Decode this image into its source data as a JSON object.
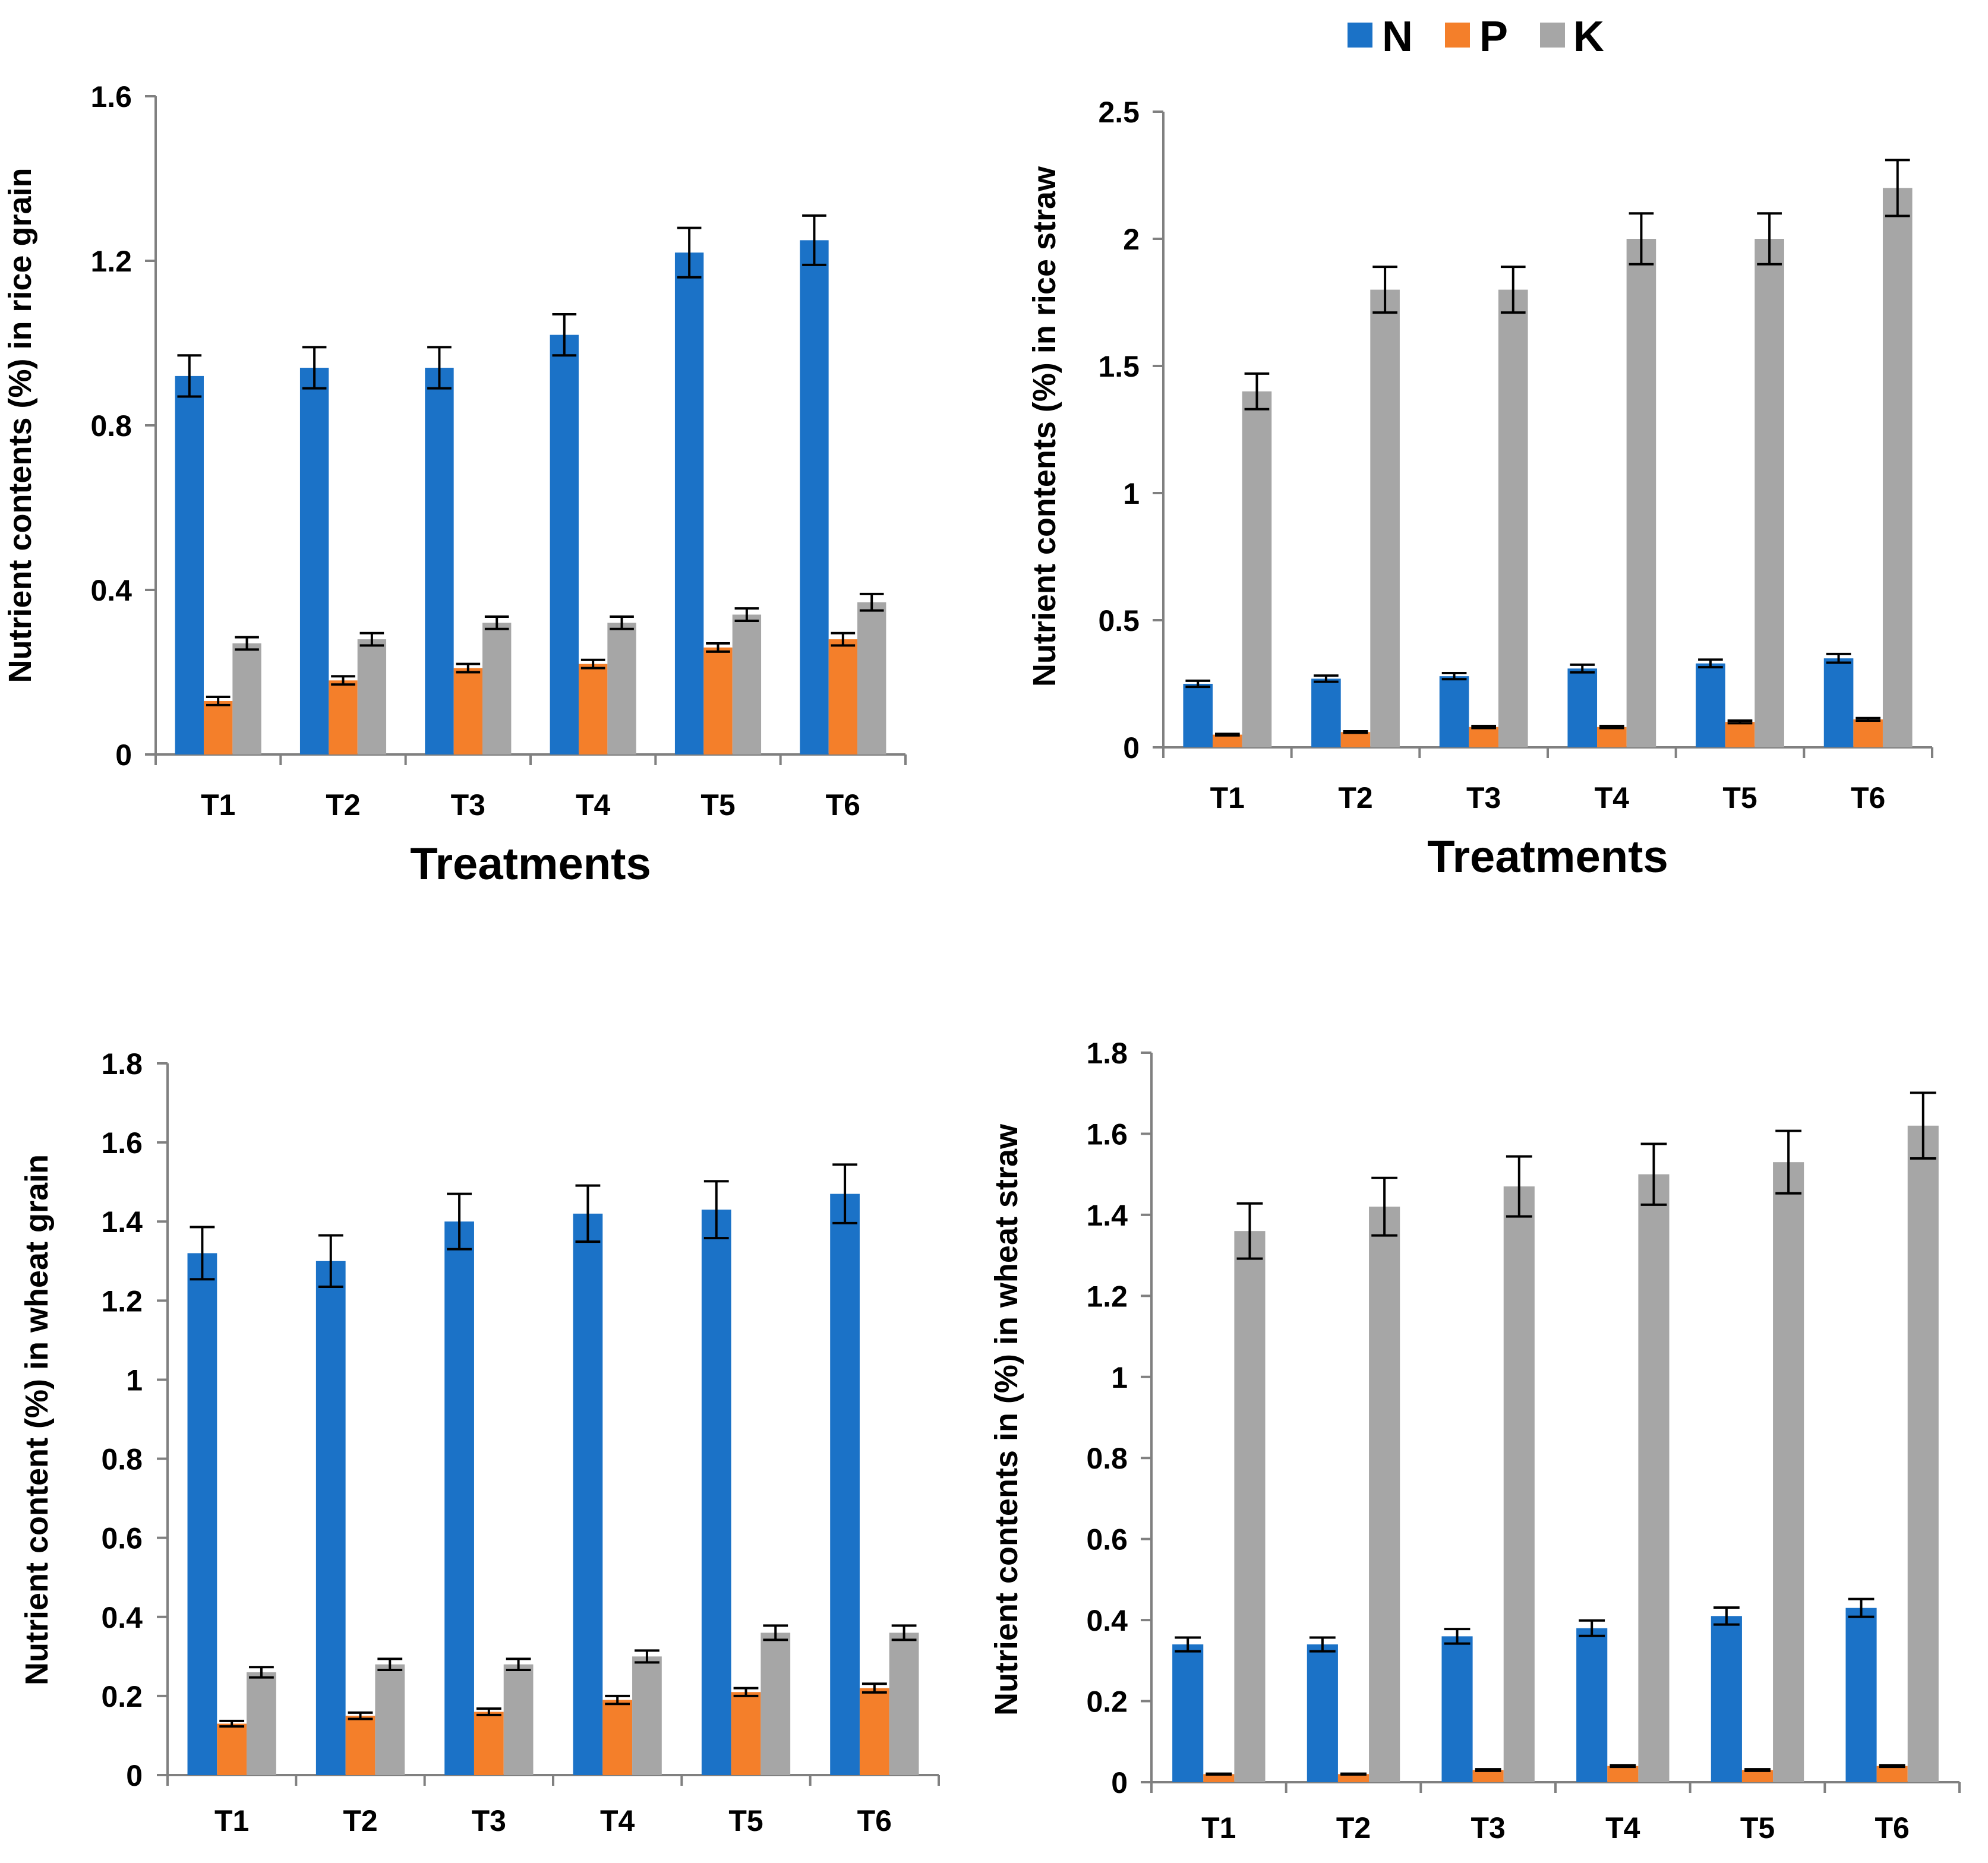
{
  "legend": [
    {
      "label": "N",
      "color": "#1b72c7"
    },
    {
      "label": "P",
      "color": "#f47f2a"
    },
    {
      "label": "K",
      "color": "#a6a6a6"
    }
  ],
  "chart_data": [
    {
      "type": "bar",
      "title": "",
      "xlabel": "Treatments",
      "ylabel": "Nutrient contents (%) in rice grain",
      "categories": [
        "T1",
        "T2",
        "T3",
        "T4",
        "T5",
        "T6"
      ],
      "ylim": [
        0,
        1.6
      ],
      "yticks": [
        "0",
        "0.4",
        "0.8",
        "1.2",
        "1.6"
      ],
      "ytick_values": [
        0,
        0.4,
        0.8,
        1.2,
        1.6
      ],
      "series": [
        {
          "name": "N",
          "values": [
            0.92,
            0.94,
            0.94,
            1.02,
            1.22,
            1.25
          ],
          "errors": [
            0.05,
            0.05,
            0.05,
            0.05,
            0.06,
            0.06
          ]
        },
        {
          "name": "P",
          "values": [
            0.13,
            0.18,
            0.21,
            0.22,
            0.26,
            0.28
          ],
          "errors": [
            0.01,
            0.01,
            0.01,
            0.01,
            0.01,
            0.015
          ]
        },
        {
          "name": "K",
          "values": [
            0.27,
            0.28,
            0.32,
            0.32,
            0.34,
            0.37
          ],
          "errors": [
            0.015,
            0.015,
            0.015,
            0.015,
            0.015,
            0.02
          ]
        }
      ]
    },
    {
      "type": "bar",
      "title": "",
      "xlabel": "Treatments",
      "ylabel": "Nutrient contents (%) in rice straw",
      "categories": [
        "T1",
        "T2",
        "T3",
        "T4",
        "T5",
        "T6"
      ],
      "ylim": [
        0,
        2.5
      ],
      "yticks": [
        "0",
        "0.5",
        "1",
        "1.5",
        "2",
        "2.5"
      ],
      "ytick_values": [
        0,
        0.5,
        1,
        1.5,
        2,
        2.5
      ],
      "series": [
        {
          "name": "N",
          "values": [
            0.25,
            0.27,
            0.28,
            0.31,
            0.33,
            0.35
          ],
          "errors": [
            0.012,
            0.012,
            0.012,
            0.015,
            0.015,
            0.017
          ]
        },
        {
          "name": "P",
          "values": [
            0.05,
            0.06,
            0.08,
            0.08,
            0.1,
            0.11
          ],
          "errors": [
            0.003,
            0.003,
            0.004,
            0.004,
            0.005,
            0.005
          ]
        },
        {
          "name": "K",
          "values": [
            1.4,
            1.8,
            1.8,
            2.0,
            2.0,
            2.2
          ],
          "errors": [
            0.07,
            0.09,
            0.09,
            0.1,
            0.1,
            0.11
          ]
        }
      ]
    },
    {
      "type": "bar",
      "title": "",
      "xlabel": "",
      "ylabel": "Nutrient content (%) in wheat grain",
      "categories": [
        "T1",
        "T2",
        "T3",
        "T4",
        "T5",
        "T6"
      ],
      "ylim": [
        0,
        1.8
      ],
      "yticks": [
        "0",
        "0.2",
        "0.4",
        "0.6",
        "0.8",
        "1",
        "1.2",
        "1.4",
        "1.6",
        "1.8"
      ],
      "ytick_values": [
        0,
        0.2,
        0.4,
        0.6,
        0.8,
        1,
        1.2,
        1.4,
        1.6,
        1.8
      ],
      "series": [
        {
          "name": "N",
          "values": [
            1.32,
            1.3,
            1.4,
            1.42,
            1.43,
            1.47
          ],
          "errors": [
            0.066,
            0.065,
            0.07,
            0.071,
            0.072,
            0.074
          ]
        },
        {
          "name": "P",
          "values": [
            0.13,
            0.15,
            0.16,
            0.19,
            0.21,
            0.22
          ],
          "errors": [
            0.007,
            0.008,
            0.008,
            0.01,
            0.01,
            0.011
          ]
        },
        {
          "name": "K",
          "values": [
            0.26,
            0.28,
            0.28,
            0.3,
            0.36,
            0.36
          ],
          "errors": [
            0.013,
            0.014,
            0.014,
            0.015,
            0.018,
            0.018
          ]
        }
      ]
    },
    {
      "type": "bar",
      "title": "",
      "xlabel": "",
      "ylabel": "Nutrient contents in (%) in wheat straw",
      "categories": [
        "T1",
        "T2",
        "T3",
        "T4",
        "T5",
        "T6"
      ],
      "ylim": [
        0,
        1.8
      ],
      "yticks": [
        "0",
        "0.2",
        "0.4",
        "0.6",
        "0.8",
        "1",
        "1.2",
        "1.4",
        "1.6",
        "1.8"
      ],
      "ytick_values": [
        0,
        0.2,
        0.4,
        0.6,
        0.8,
        1,
        1.2,
        1.4,
        1.6,
        1.8
      ],
      "series": [
        {
          "name": "N",
          "values": [
            0.34,
            0.34,
            0.36,
            0.38,
            0.41,
            0.43
          ],
          "errors": [
            0.017,
            0.017,
            0.018,
            0.019,
            0.021,
            0.022
          ]
        },
        {
          "name": "P",
          "values": [
            0.02,
            0.02,
            0.03,
            0.04,
            0.03,
            0.04
          ],
          "errors": [
            0.001,
            0.001,
            0.002,
            0.002,
            0.002,
            0.002
          ]
        },
        {
          "name": "K",
          "values": [
            1.36,
            1.42,
            1.47,
            1.5,
            1.53,
            1.62
          ],
          "errors": [
            0.068,
            0.071,
            0.074,
            0.075,
            0.077,
            0.081
          ]
        }
      ]
    }
  ]
}
